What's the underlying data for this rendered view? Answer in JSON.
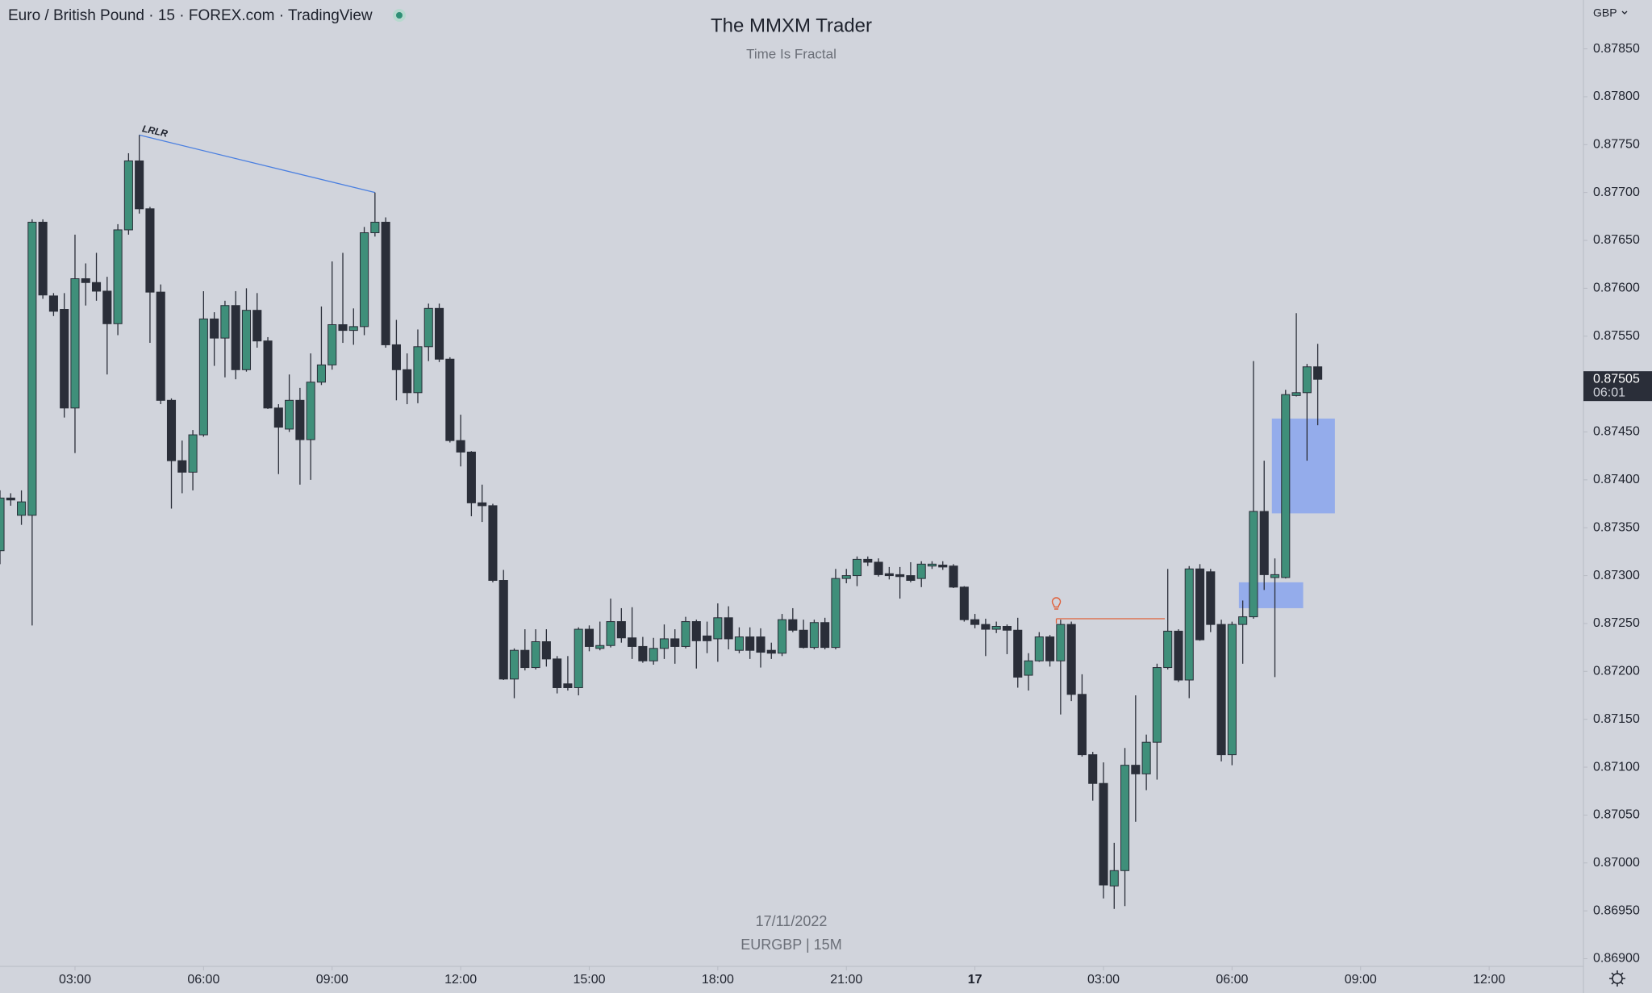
{
  "chart_data": {
    "type": "candlestick",
    "header": "Euro / British Pound · 15 · FOREX.com · TradingView",
    "title": "The MMXM Trader",
    "subtitle": "Time Is Fractal",
    "watermark": [
      "17/11/2022",
      "EURGBP | 15M"
    ],
    "currency": "GBP",
    "last_price_label": "0.87505",
    "countdown": "06:01",
    "up_color": "#3f8f7a",
    "down_color": "#2a2e39",
    "x": [
      1.25,
      1.5,
      1.75,
      2,
      2.25,
      2.5,
      2.75,
      3,
      3.25,
      3.5,
      3.75,
      4,
      4.25,
      4.5,
      4.75,
      5,
      5.25,
      5.5,
      5.75,
      6,
      6.25,
      6.5,
      6.75,
      7,
      7.25,
      7.5,
      7.75,
      8,
      8.25,
      8.5,
      8.75,
      9,
      9.25,
      9.5,
      9.75,
      10,
      10.25,
      10.5,
      10.75,
      11,
      11.25,
      11.5,
      11.75,
      12,
      12.25,
      12.5,
      12.75,
      13,
      13.25,
      13.5,
      13.75,
      14,
      14.25,
      14.5,
      14.75,
      15,
      15.25,
      15.5,
      15.75,
      16,
      16.25,
      16.5,
      16.75,
      17,
      17.25,
      17.5,
      17.75,
      18,
      18.25,
      18.5,
      18.75,
      19,
      19.25,
      19.5,
      19.75,
      20,
      20.25,
      20.5,
      20.75,
      21,
      21.25,
      21.5,
      21.75,
      22,
      22.25,
      22.5,
      22.75,
      23,
      23.25,
      23.5,
      23.75,
      24,
      24.25,
      24.5,
      24.75,
      25,
      25.25,
      25.5,
      25.75,
      26,
      26.25,
      26.5,
      26.75,
      27,
      27.25,
      27.5,
      27.75,
      28,
      28.25,
      28.5,
      28.75,
      29,
      29.25,
      29.5,
      29.75,
      30,
      30.25,
      30.5,
      30.75,
      31,
      31.25,
      31.5,
      31.75,
      32
    ],
    "open": [
      0.87326,
      0.87381,
      0.87363,
      0.87363,
      0.87669,
      0.87592,
      0.87578,
      0.87475,
      0.8761,
      0.87606,
      0.87597,
      0.87563,
      0.87661,
      0.87733,
      0.87683,
      0.87596,
      0.87483,
      0.8742,
      0.87408,
      0.87447,
      0.87568,
      0.87548,
      0.87582,
      0.87515,
      0.87577,
      0.87545,
      0.87475,
      0.87453,
      0.87483,
      0.87442,
      0.87502,
      0.8752,
      0.87562,
      0.87556,
      0.8756,
      0.87658,
      0.87669,
      0.87541,
      0.87515,
      0.87491,
      0.87539,
      0.87579,
      0.87526,
      0.87441,
      0.87429,
      0.87376,
      0.87373,
      0.87295,
      0.87192,
      0.87222,
      0.87204,
      0.87231,
      0.87213,
      0.87187,
      0.87183,
      0.87244,
      0.87224,
      0.87227,
      0.87252,
      0.87235,
      0.87226,
      0.87211,
      0.87224,
      0.87234,
      0.87226,
      0.87252,
      0.87237,
      0.87234,
      0.87256,
      0.87222,
      0.87236,
      0.87236,
      0.87222,
      0.87219,
      0.87254,
      0.87243,
      0.87225,
      0.87251,
      0.87225,
      0.87297,
      0.873,
      0.87317,
      0.87314,
      0.87302,
      0.87301,
      0.873,
      0.87297,
      0.8731,
      0.87311,
      0.8731,
      0.87288,
      0.87254,
      0.87249,
      0.87244,
      0.87247,
      0.87243,
      0.87196,
      0.87211,
      0.87236,
      0.87211,
      0.87249,
      0.87176,
      0.87113,
      0.87083,
      0.86976,
      0.86992,
      0.87102,
      0.87093,
      0.87126,
      0.87204,
      0.87242,
      0.87191,
      0.87307,
      0.87304,
      0.87249,
      0.87113,
      0.87249,
      0.87257,
      0.87367,
      0.87298,
      0.87298,
      0.87488,
      0.87491,
      0.87518
    ],
    "high": [
      0.87389,
      0.87386,
      0.87389,
      0.87672,
      0.87672,
      0.87595,
      0.87595,
      0.87656,
      0.87626,
      0.87637,
      0.87612,
      0.87667,
      0.87741,
      0.8776,
      0.87685,
      0.87604,
      0.87485,
      0.87441,
      0.87452,
      0.87597,
      0.87575,
      0.87587,
      0.87597,
      0.876,
      0.87595,
      0.87549,
      0.87479,
      0.8751,
      0.87496,
      0.87532,
      0.87581,
      0.87628,
      0.87637,
      0.87579,
      0.87664,
      0.877,
      0.87674,
      0.87567,
      0.87532,
      0.87557,
      0.87584,
      0.87584,
      0.87528,
      0.87468,
      0.8743,
      0.87395,
      0.87375,
      0.87306,
      0.87224,
      0.87244,
      0.87244,
      0.87244,
      0.87216,
      0.87216,
      0.87246,
      0.87248,
      0.87252,
      0.87276,
      0.87266,
      0.87267,
      0.87236,
      0.87235,
      0.87249,
      0.87244,
      0.87257,
      0.87254,
      0.87252,
      0.87271,
      0.87268,
      0.87246,
      0.87246,
      0.87245,
      0.8723,
      0.8726,
      0.87266,
      0.87254,
      0.87254,
      0.87256,
      0.87307,
      0.87307,
      0.8732,
      0.8732,
      0.87318,
      0.87309,
      0.87309,
      0.87314,
      0.87315,
      0.87315,
      0.87315,
      0.87312,
      0.87289,
      0.8726,
      0.87255,
      0.87252,
      0.87249,
      0.87256,
      0.87219,
      0.87241,
      0.87238,
      0.87254,
      0.87252,
      0.87197,
      0.87116,
      0.87105,
      0.87021,
      0.8712,
      0.87175,
      0.87134,
      0.87208,
      0.87307,
      0.87244,
      0.8731,
      0.87312,
      0.87307,
      0.87254,
      0.87252,
      0.87274,
      0.87524,
      0.8742,
      0.87318,
      0.87494,
      0.87574,
      0.87521,
      0.87542
    ],
    "low": [
      0.87312,
      0.87373,
      0.87353,
      0.87248,
      0.87589,
      0.87571,
      0.87465,
      0.87428,
      0.87582,
      0.87587,
      0.8751,
      0.87551,
      0.87656,
      0.87678,
      0.87543,
      0.87479,
      0.8737,
      0.87386,
      0.87389,
      0.87445,
      0.87519,
      0.87507,
      0.87505,
      0.87513,
      0.87538,
      0.87474,
      0.87406,
      0.8745,
      0.87395,
      0.874,
      0.87499,
      0.87515,
      0.87543,
      0.87541,
      0.87551,
      0.87654,
      0.87538,
      0.87483,
      0.87479,
      0.8748,
      0.87524,
      0.87523,
      0.87439,
      0.87414,
      0.87362,
      0.87356,
      0.87293,
      0.87191,
      0.87172,
      0.87201,
      0.87202,
      0.87205,
      0.87177,
      0.8718,
      0.87175,
      0.87221,
      0.87222,
      0.87225,
      0.8723,
      0.87213,
      0.87209,
      0.87207,
      0.87213,
      0.87208,
      0.87224,
      0.87203,
      0.87219,
      0.8721,
      0.87223,
      0.87219,
      0.87213,
      0.87204,
      0.87213,
      0.87216,
      0.87241,
      0.87224,
      0.87223,
      0.87223,
      0.87223,
      0.87292,
      0.87289,
      0.8731,
      0.87299,
      0.87296,
      0.87276,
      0.87293,
      0.87288,
      0.87307,
      0.87306,
      0.87287,
      0.87252,
      0.87245,
      0.87216,
      0.8724,
      0.87218,
      0.87183,
      0.8718,
      0.8721,
      0.87205,
      0.87155,
      0.87169,
      0.87111,
      0.87065,
      0.86963,
      0.86952,
      0.86955,
      0.87043,
      0.87076,
      0.87087,
      0.87202,
      0.87189,
      0.87172,
      0.87232,
      0.87241,
      0.87106,
      0.87102,
      0.87208,
      0.87255,
      0.87285,
      0.87194,
      0.87297,
      0.87487,
      0.8742,
      0.87457
    ],
    "close": [
      0.87381,
      0.87379,
      0.87377,
      0.87669,
      0.87593,
      0.87576,
      0.87475,
      0.8761,
      0.87606,
      0.87597,
      0.87563,
      0.87661,
      0.87733,
      0.87683,
      0.87596,
      0.87483,
      0.8742,
      0.87408,
      0.87447,
      0.87568,
      0.87548,
      0.87582,
      0.87515,
      0.87577,
      0.87545,
      0.87475,
      0.87455,
      0.87483,
      0.87442,
      0.87502,
      0.8752,
      0.87562,
      0.87556,
      0.8756,
      0.87658,
      0.87669,
      0.87541,
      0.87515,
      0.87491,
      0.87539,
      0.87579,
      0.87526,
      0.87441,
      0.87429,
      0.87376,
      0.87373,
      0.87295,
      0.87192,
      0.87222,
      0.87204,
      0.87231,
      0.87213,
      0.87183,
      0.87183,
      0.87244,
      0.87226,
      0.87227,
      0.87252,
      0.87235,
      0.87226,
      0.87211,
      0.87224,
      0.87234,
      0.87226,
      0.87252,
      0.87232,
      0.87232,
      0.87256,
      0.87234,
      0.87236,
      0.87222,
      0.8722,
      0.87219,
      0.87254,
      0.87243,
      0.87225,
      0.87251,
      0.87225,
      0.87297,
      0.873,
      0.87317,
      0.87314,
      0.87301,
      0.873,
      0.87299,
      0.87295,
      0.87312,
      0.87312,
      0.87309,
      0.87288,
      0.87254,
      0.87249,
      0.87244,
      0.87247,
      0.87243,
      0.87194,
      0.87211,
      0.87236,
      0.87211,
      0.87249,
      0.87176,
      0.87113,
      0.87083,
      0.86977,
      0.86992,
      0.87102,
      0.87093,
      0.87126,
      0.87204,
      0.87242,
      0.87191,
      0.87307,
      0.87233,
      0.87249,
      0.87113,
      0.87249,
      0.87257,
      0.87367,
      0.87301,
      0.87301,
      0.87489,
      0.87491,
      0.87518,
      0.87505
    ],
    "xlim": [
      1.25,
      38.2
    ],
    "xticks": [
      {
        "value": 3,
        "label": "03:00"
      },
      {
        "value": 6,
        "label": "06:00"
      },
      {
        "value": 9,
        "label": "09:00"
      },
      {
        "value": 12,
        "label": "12:00"
      },
      {
        "value": 15,
        "label": "15:00"
      },
      {
        "value": 18,
        "label": "18:00"
      },
      {
        "value": 21,
        "label": "21:00"
      },
      {
        "value": 24,
        "label": "17"
      },
      {
        "value": 27,
        "label": "03:00"
      },
      {
        "value": 30,
        "label": "06:00"
      },
      {
        "value": 33,
        "label": "09:00"
      },
      {
        "value": 36,
        "label": "12:00"
      }
    ],
    "ylim": [
      0.86892,
      0.87901
    ],
    "yticks": [
      {
        "value": 0.8785,
        "label": "0.87850"
      },
      {
        "value": 0.878,
        "label": "0.87800"
      },
      {
        "value": 0.8775,
        "label": "0.87750"
      },
      {
        "value": 0.877,
        "label": "0.87700"
      },
      {
        "value": 0.8765,
        "label": "0.87650"
      },
      {
        "value": 0.876,
        "label": "0.87600"
      },
      {
        "value": 0.8755,
        "label": "0.87550"
      },
      {
        "value": 0.8745,
        "label": "0.87450"
      },
      {
        "value": 0.874,
        "label": "0.87400"
      },
      {
        "value": 0.8735,
        "label": "0.87350"
      },
      {
        "value": 0.873,
        "label": "0.87300"
      },
      {
        "value": 0.8725,
        "label": "0.87250"
      },
      {
        "value": 0.872,
        "label": "0.87200"
      },
      {
        "value": 0.8715,
        "label": "0.87150"
      },
      {
        "value": 0.871,
        "label": "0.87100"
      },
      {
        "value": 0.8705,
        "label": "0.87050"
      },
      {
        "value": 0.87,
        "label": "0.87000"
      },
      {
        "value": 0.8695,
        "label": "0.86950"
      },
      {
        "value": 0.869,
        "label": "0.86900"
      }
    ],
    "trendline": {
      "label": "LRLR",
      "x": [
        4.5,
        10
      ],
      "y": [
        0.8776,
        0.877
      ],
      "color": "#4a7fe0"
    },
    "level_line": {
      "x": [
        25.9,
        28.43
      ],
      "y": 0.87255,
      "color": "#e0603a"
    },
    "zones": [
      {
        "x": [
          30.93,
          32.4
        ],
        "y": [
          0.87365,
          0.87464
        ]
      },
      {
        "x": [
          30.16,
          31.66
        ],
        "y": [
          0.87266,
          0.87293
        ]
      }
    ],
    "zone_color": "#7f9ff0"
  }
}
